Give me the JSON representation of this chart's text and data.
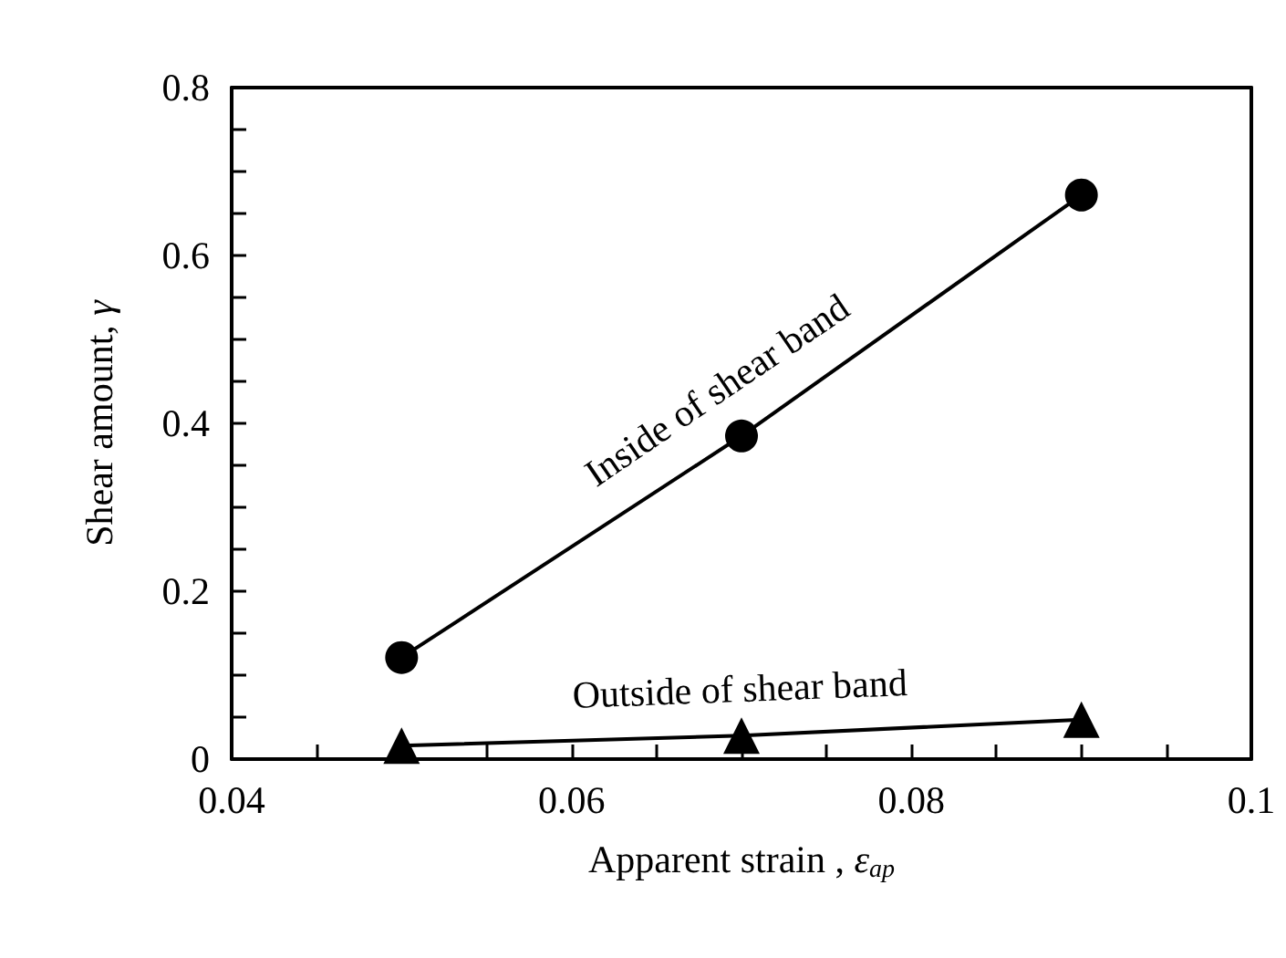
{
  "chart_data": {
    "type": "line",
    "xlabel": "Apparent strain , ε$_{ap}$",
    "ylabel": "Shear amount, γ",
    "x": [
      0.05,
      0.07,
      0.09
    ],
    "series": [
      {
        "name": "Inside of shear band",
        "color": "#000000",
        "marker": "circle",
        "values": [
          0.121,
          0.385,
          0.672
        ]
      },
      {
        "name": "Outside of shear band",
        "color": "#000000",
        "marker": "triangle",
        "values": [
          0.016,
          0.028,
          0.047
        ]
      }
    ],
    "xlim": [
      0.04,
      0.1
    ],
    "xticks": [
      0.04,
      0.06,
      0.08,
      0.1
    ],
    "ylim": [
      0,
      0.8
    ],
    "yticks": [
      0,
      0.2,
      0.4,
      0.6,
      0.8
    ],
    "grid": false,
    "legend": false,
    "line_style": "solid"
  }
}
